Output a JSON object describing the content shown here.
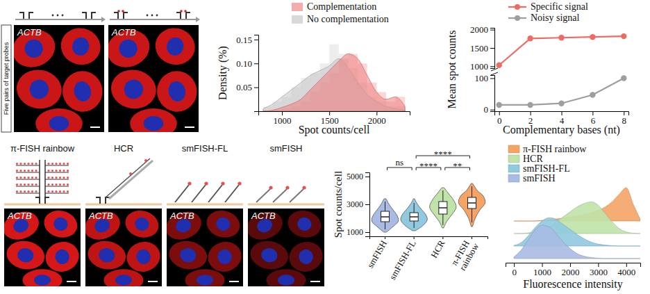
{
  "images": {
    "side_label": "Five pairs of target probes",
    "top_labels": [
      "ACTB",
      "ACTB"
    ],
    "methods": [
      {
        "name": "π-FISH rainbow",
        "label": "ACTB"
      },
      {
        "name": "HCR",
        "label": "ACTB"
      },
      {
        "name": "smFISH-FL",
        "label": "ACTB"
      },
      {
        "name": "smFISH",
        "label": "ACTB"
      }
    ]
  },
  "chart_data": [
    {
      "type": "histogram",
      "xlabel": "Spot counts/cell",
      "ylabel": "Density (%)",
      "bins": [
        800,
        900,
        1000,
        1100,
        1200,
        1300,
        1400,
        1500,
        1600,
        1700,
        1800,
        1900,
        2000,
        2100,
        2200,
        2300
      ],
      "xlim": [
        750,
        2350
      ],
      "xticks": [
        1000,
        1500,
        2000
      ],
      "ylim": [
        0,
        0.16
      ],
      "yticks": [
        0.05,
        {
          "value": 0.1,
          "label": "0.10"
        },
        0.15
      ],
      "legend": "top",
      "x": [
        800,
        900,
        1000,
        1100,
        1200,
        1300,
        1400,
        1500,
        1600,
        1700,
        1800,
        1900,
        2000,
        2100,
        2200,
        2300
      ],
      "series": [
        {
          "name": "Complementation",
          "color": "#ee7f7f",
          "values": [
            0,
            0,
            0.005,
            0.01,
            0.02,
            0.04,
            0.06,
            0.08,
            0.11,
            0.12,
            0.1,
            0.06,
            0.04,
            0.02,
            0.03
          ],
          "density": [
            0,
            0.002,
            0.008,
            0.015,
            0.025,
            0.045,
            0.065,
            0.085,
            0.105,
            0.12,
            0.11,
            0.075,
            0.04,
            0.025,
            0.03,
            0.01
          ]
        },
        {
          "name": "No complementation",
          "color": "#c4c4c4",
          "values": [
            0.01,
            0.02,
            0.03,
            0.05,
            0.07,
            0.08,
            0.1,
            0.14,
            0.12,
            0.09,
            0.06,
            0.03,
            0.02,
            0.01,
            0.01
          ],
          "density": [
            0.005,
            0.015,
            0.03,
            0.045,
            0.06,
            0.075,
            0.085,
            0.095,
            0.11,
            0.09,
            0.06,
            0.035,
            0.02,
            0.01,
            0.005,
            0.002
          ]
        }
      ]
    },
    {
      "type": "line",
      "xlabel": "Complementary bases (nt)",
      "ylabel": "Mean spot counts",
      "x": [
        0,
        2,
        4,
        6,
        8
      ],
      "xlim": [
        -0.3,
        8.3
      ],
      "xticks": [
        0,
        2,
        4,
        6,
        8
      ],
      "ylim": [
        -5,
        110
      ],
      "yticks": [
        0,
        100
      ],
      "y2lim": [
        950,
        2050
      ],
      "y2ticks": [
        1000,
        1500,
        2000
      ],
      "legend": "top",
      "marker": "circle",
      "series": [
        {
          "name": "Specific signal",
          "color": "#ee6b64",
          "axis": "y2",
          "values": [
            1030,
            1760,
            1780,
            1800,
            1820
          ]
        },
        {
          "name": "Noisy signal",
          "color": "#9e9e9e",
          "values": [
            15,
            15,
            20,
            47,
            100
          ]
        }
      ]
    },
    {
      "type": "violin",
      "ylabel": "Spot counts/cell",
      "categories": [
        "smFISH",
        "smFISH-FL",
        "HCR",
        "π-FISH rainbow"
      ],
      "colors": [
        "#a9bbe3",
        "#8fcae0",
        "#bfe3a9",
        "#f5a466"
      ],
      "ylim": [
        700,
        5300
      ],
      "yticks": [
        1000,
        3000,
        5000
      ],
      "box": [
        {
          "min": 1200,
          "q1": 1750,
          "median": 2100,
          "q3": 2500,
          "max": 3200
        },
        {
          "min": 1300,
          "q1": 1800,
          "median": 2100,
          "q3": 2400,
          "max": 3100
        },
        {
          "min": 1500,
          "q1": 2300,
          "median": 2750,
          "q3": 3200,
          "max": 4000
        },
        {
          "min": 1700,
          "q1": 2700,
          "median": 3100,
          "q3": 3500,
          "max": 4300
        }
      ],
      "violin": [
        {
          "y": [
            1000,
            1400,
            1800,
            2200,
            2600,
            3000,
            3400
          ],
          "density": [
            0.1,
            0.6,
            1.0,
            0.9,
            0.6,
            0.3,
            0.08
          ]
        },
        {
          "y": [
            1100,
            1500,
            1900,
            2300,
            2700,
            3100,
            3400
          ],
          "density": [
            0.1,
            0.7,
            1.0,
            0.85,
            0.5,
            0.2,
            0.05
          ]
        },
        {
          "y": [
            1300,
            1800,
            2300,
            2800,
            3300,
            3800,
            4200
          ],
          "density": [
            0.05,
            0.3,
            0.7,
            1.0,
            0.8,
            0.4,
            0.08
          ]
        },
        {
          "y": [
            1400,
            2000,
            2600,
            3100,
            3600,
            4000,
            4500
          ],
          "density": [
            0.05,
            0.25,
            0.6,
            1.0,
            0.85,
            0.4,
            0.06
          ]
        }
      ],
      "significance": [
        {
          "from": 0,
          "to": 1,
          "label": "ns"
        },
        {
          "from": 1,
          "to": 3,
          "label": "****"
        },
        {
          "from": 1,
          "to": 2,
          "label": "****"
        },
        {
          "from": 2,
          "to": 3,
          "label": "**"
        }
      ]
    },
    {
      "type": "ridgeline",
      "xlabel": "Fluorescence intensity",
      "x": [
        0,
        250,
        500,
        750,
        1000,
        1250,
        1500,
        1750,
        2000,
        2250,
        2500,
        2750,
        3000,
        3250,
        3500,
        3750,
        4000,
        4250,
        4500
      ],
      "xlim": [
        -300,
        4500
      ],
      "xticks": [
        0,
        1000,
        2000,
        3000,
        4000
      ],
      "tick_labels": "x",
      "legend": "top",
      "series": [
        {
          "name": "π-FISH rainbow",
          "color": "#f5a466",
          "values": [
            0,
            0,
            0,
            0,
            0.02,
            0.04,
            0.06,
            0.09,
            0.12,
            0.16,
            0.2,
            0.25,
            0.32,
            0.42,
            0.58,
            0.8,
            1.0,
            0.5,
            0.05
          ]
        },
        {
          "name": "HCR",
          "color": "#bfe3a9",
          "values": [
            0,
            0,
            0.02,
            0.05,
            0.1,
            0.2,
            0.35,
            0.5,
            0.65,
            0.8,
            0.9,
            0.95,
            0.85,
            0.6,
            0.35,
            0.15,
            0.05,
            0.01,
            0
          ]
        },
        {
          "name": "smFISH-FL",
          "color": "#8fcae0",
          "values": [
            0.02,
            0.1,
            0.3,
            0.55,
            0.75,
            0.85,
            0.8,
            0.65,
            0.5,
            0.35,
            0.22,
            0.12,
            0.06,
            0.03,
            0.01,
            0,
            0,
            0,
            0
          ]
        },
        {
          "name": "smFISH",
          "color": "#a9bbe3",
          "values": [
            0.05,
            0.25,
            0.55,
            0.85,
            1.0,
            0.95,
            0.75,
            0.5,
            0.3,
            0.15,
            0.07,
            0.03,
            0.01,
            0,
            0,
            0,
            0,
            0,
            0
          ]
        }
      ]
    }
  ]
}
